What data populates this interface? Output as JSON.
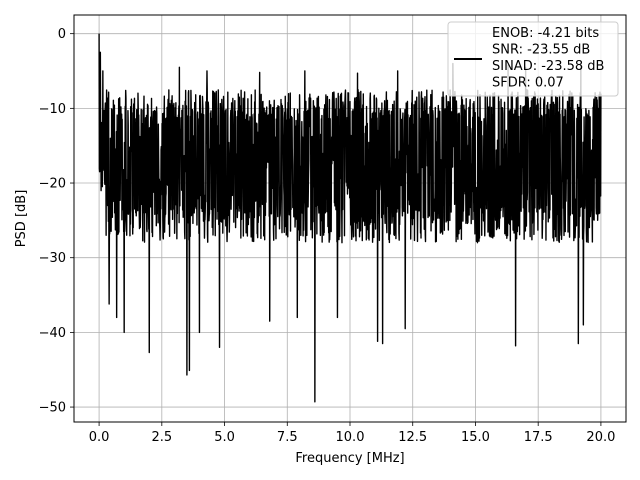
{
  "chart_data": {
    "type": "line",
    "title": "",
    "xlabel": "Frequency [MHz]",
    "ylabel": "PSD [dB]",
    "xlim": [
      -1.0,
      21.0
    ],
    "ylim": [
      -52.0,
      2.5
    ],
    "x_ticks": [
      0.0,
      2.5,
      5.0,
      7.5,
      10.0,
      12.5,
      15.0,
      17.5,
      20.0
    ],
    "x_tick_labels": [
      "0.0",
      "2.5",
      "5.0",
      "7.5",
      "10.0",
      "12.5",
      "15.0",
      "17.5",
      "20.0"
    ],
    "y_ticks": [
      0,
      -10,
      -20,
      -30,
      -40,
      -50
    ],
    "y_tick_labels": [
      "0",
      "−10",
      "−20",
      "−30",
      "−40",
      "−50"
    ],
    "grid": true,
    "legend_position": "top-right",
    "legend_entries": [
      "ENOB: -4.21 bits",
      "SNR: -23.55 dB",
      "SINAD: -23.58 dB",
      "SFDR: 0.07"
    ],
    "series": [
      {
        "color": "#000000",
        "x_range": [
          0.0,
          20.0
        ],
        "band_top": -7.5,
        "band_bottom": -28.0,
        "band_center": -17.0,
        "peaks": [
          {
            "x": 0.0,
            "y": 0.0
          },
          {
            "x": 0.05,
            "y": -2.5
          },
          {
            "x": 0.15,
            "y": -5.0
          },
          {
            "x": 3.2,
            "y": -4.5
          },
          {
            "x": 4.3,
            "y": -5.0
          },
          {
            "x": 6.4,
            "y": -5.2
          },
          {
            "x": 8.2,
            "y": -5.0
          },
          {
            "x": 10.3,
            "y": -5.3
          },
          {
            "x": 11.3,
            "y": -3.5
          },
          {
            "x": 11.9,
            "y": -5.0
          },
          {
            "x": 14.1,
            "y": -4.0
          },
          {
            "x": 16.3,
            "y": -4.2
          },
          {
            "x": 17.0,
            "y": -4.5
          },
          {
            "x": 19.2,
            "y": -4.0
          }
        ],
        "troughs": [
          {
            "x": 0.4,
            "y": -36.2
          },
          {
            "x": 0.7,
            "y": -38.0
          },
          {
            "x": 1.0,
            "y": -40.0
          },
          {
            "x": 2.0,
            "y": -42.7
          },
          {
            "x": 3.5,
            "y": -45.7
          },
          {
            "x": 3.6,
            "y": -45.1
          },
          {
            "x": 4.0,
            "y": -40.0
          },
          {
            "x": 4.8,
            "y": -42.0
          },
          {
            "x": 6.8,
            "y": -38.5
          },
          {
            "x": 7.9,
            "y": -38.0
          },
          {
            "x": 8.6,
            "y": -49.3
          },
          {
            "x": 9.5,
            "y": -38.0
          },
          {
            "x": 11.1,
            "y": -41.2
          },
          {
            "x": 11.3,
            "y": -41.5
          },
          {
            "x": 12.2,
            "y": -39.5
          },
          {
            "x": 16.6,
            "y": -41.8
          },
          {
            "x": 19.1,
            "y": -41.5
          },
          {
            "x": 19.3,
            "y": -39.0
          }
        ]
      }
    ]
  }
}
